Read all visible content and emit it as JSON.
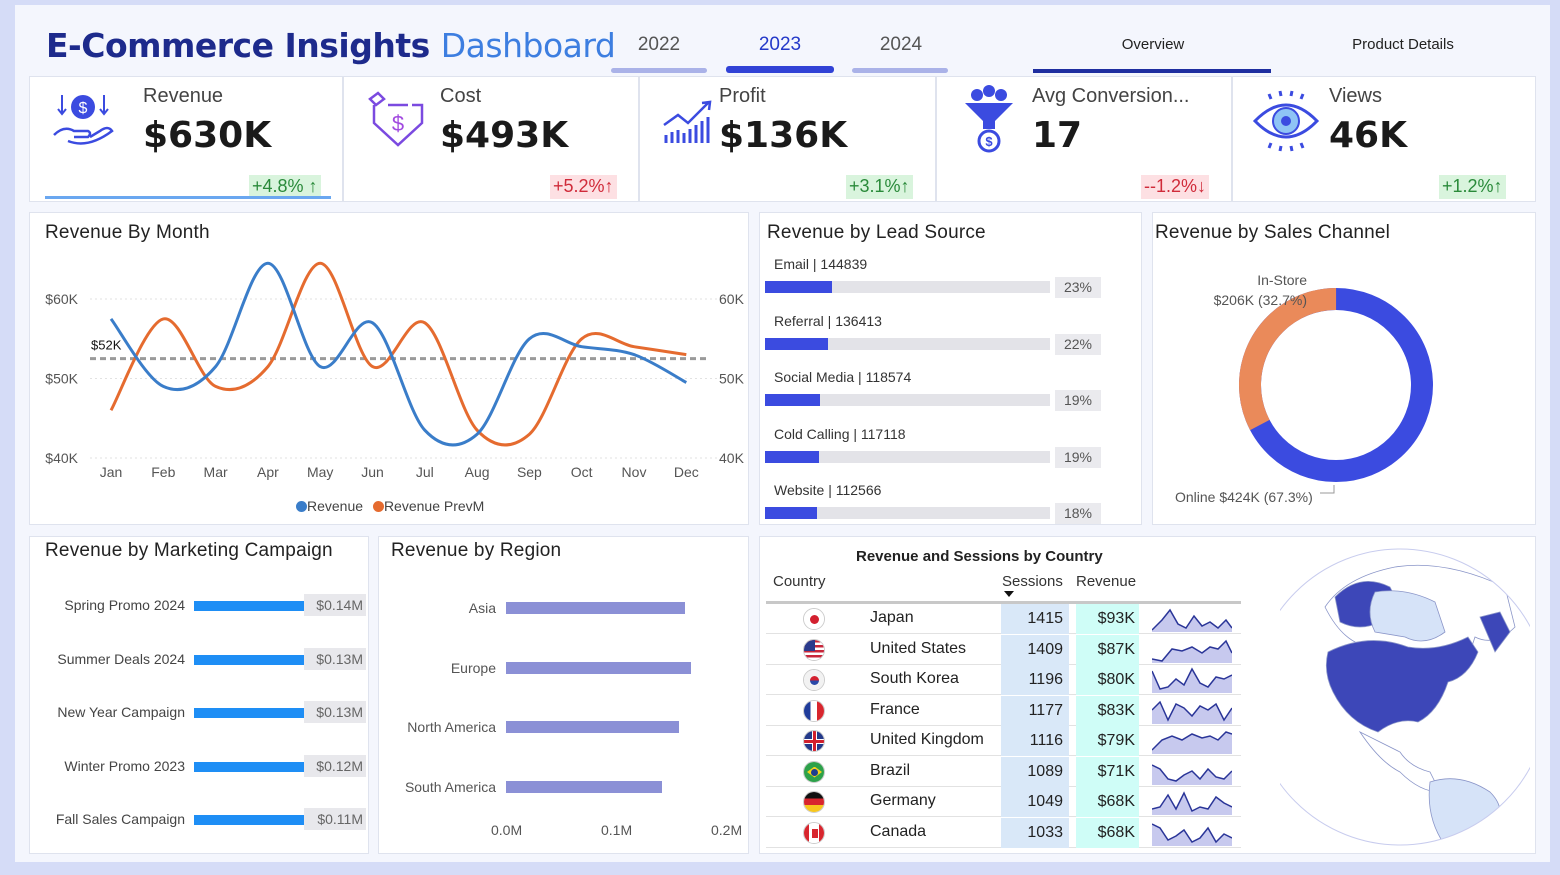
{
  "header": {
    "title_main": "E-Commerce Insights",
    "title_accent": "Dashboard",
    "years": [
      "2022",
      "2023",
      "2024"
    ],
    "selected_year": "2023",
    "tabs": [
      "Overview",
      "Product Details"
    ],
    "active_tab": "Overview"
  },
  "kpis": [
    {
      "label": "Revenue",
      "value": "$630K",
      "delta": "+4.8% ↑",
      "trend": "up",
      "icon": "revenue-hand-icon"
    },
    {
      "label": "Cost",
      "value": "$493K",
      "delta": "+5.2%↑",
      "trend": "down",
      "icon": "cost-shield-icon"
    },
    {
      "label": "Profit",
      "value": "$136K",
      "delta": "+3.1%↑",
      "trend": "up",
      "icon": "profit-chart-icon"
    },
    {
      "label": "Avg Conversion...",
      "value": "17",
      "delta": "--1.2%↓",
      "trend": "down",
      "icon": "funnel-icon"
    },
    {
      "label": "Views",
      "value": "46K",
      "delta": "+1.2%↑",
      "trend": "up",
      "icon": "eye-icon"
    }
  ],
  "revenue_by_month": {
    "title": "Revenue By Month",
    "avg_label": "$52K",
    "legend": [
      "Revenue",
      "Revenue PrevM"
    ]
  },
  "lead_source": {
    "title": "Revenue by Lead Source",
    "items": [
      {
        "label": "Email | 144839",
        "value": 144839,
        "pct": "23%"
      },
      {
        "label": "Referral | 136413",
        "value": 136413,
        "pct": "22%"
      },
      {
        "label": "Social Media | 118574",
        "value": 118574,
        "pct": "19%"
      },
      {
        "label": "Cold Calling | 117118",
        "value": 117118,
        "pct": "19%"
      },
      {
        "label": "Website | 112566",
        "value": 112566,
        "pct": "18%"
      }
    ]
  },
  "sales_channel": {
    "title": "Revenue by Sales Channel",
    "instore_name": "In-Store",
    "instore_value": "$206K (32.7%)",
    "online_label": "Online $424K (67.3%)"
  },
  "marketing": {
    "title": "Revenue by Marketing Campaign",
    "items": [
      {
        "label": "Spring Promo 2024",
        "value_text": "$0.14M",
        "value": 0.14
      },
      {
        "label": "Summer Deals 2024",
        "value_text": "$0.13M",
        "value": 0.13
      },
      {
        "label": "New Year Campaign",
        "value_text": "$0.13M",
        "value": 0.13
      },
      {
        "label": "Winter Promo 2023",
        "value_text": "$0.12M",
        "value": 0.12
      },
      {
        "label": "Fall Sales Campaign",
        "value_text": "$0.11M",
        "value": 0.11
      }
    ]
  },
  "region": {
    "title": "Revenue by Region",
    "items": [
      {
        "label": "Asia",
        "value": 0.163
      },
      {
        "label": "Europe",
        "value": 0.168
      },
      {
        "label": "North America",
        "value": 0.157
      },
      {
        "label": "South America",
        "value": 0.142
      }
    ],
    "ticks": [
      "0.0M",
      "0.1M",
      "0.2M"
    ]
  },
  "country_table": {
    "title": "Revenue and Sessions by Country",
    "headers": [
      "Country",
      "Sessions",
      "Revenue"
    ],
    "rows": [
      {
        "country": "Japan",
        "sessions": "1415",
        "revenue": "$93K"
      },
      {
        "country": "United States",
        "sessions": "1409",
        "revenue": "$87K"
      },
      {
        "country": "South Korea",
        "sessions": "1196",
        "revenue": "$80K"
      },
      {
        "country": "France",
        "sessions": "1177",
        "revenue": "$83K"
      },
      {
        "country": "United Kingdom",
        "sessions": "1116",
        "revenue": "$79K"
      },
      {
        "country": "Brazil",
        "sessions": "1089",
        "revenue": "$71K"
      },
      {
        "country": "Germany",
        "sessions": "1049",
        "revenue": "$68K"
      },
      {
        "country": "Canada",
        "sessions": "1033",
        "revenue": "$68K"
      }
    ]
  },
  "chart_data": [
    {
      "type": "line",
      "title": "Revenue By Month",
      "categories": [
        "Jan",
        "Feb",
        "Mar",
        "Apr",
        "May",
        "Jun",
        "Jul",
        "Aug",
        "Sep",
        "Oct",
        "Nov",
        "Dec"
      ],
      "series": [
        {
          "name": "Revenue",
          "values": [
            57.5,
            49,
            51.5,
            64.5,
            51.5,
            57,
            43.5,
            43,
            55,
            54,
            53,
            49.5
          ],
          "color": "#3a7dc9"
        },
        {
          "name": "Revenue PrevM",
          "values": [
            46,
            57.5,
            49,
            51.5,
            64.5,
            51.5,
            57,
            43.5,
            43,
            55,
            54,
            53
          ],
          "color": "#e56b2f"
        }
      ],
      "ylim": [
        40,
        60
      ],
      "yticks_left": [
        "$40K",
        "$50K",
        "$60K"
      ],
      "yticks_right": [
        "40K",
        "50K",
        "60K"
      ],
      "reference_line": 52.5,
      "legend": "bottom"
    },
    {
      "type": "bar",
      "title": "Revenue by Lead Source",
      "categories": [
        "Email",
        "Referral",
        "Social Media",
        "Cold Calling",
        "Website"
      ],
      "values": [
        144839,
        136413,
        118574,
        117118,
        112566
      ]
    },
    {
      "type": "pie",
      "title": "Revenue by Sales Channel",
      "categories": [
        "Online",
        "In-Store"
      ],
      "values": [
        424,
        206
      ],
      "colors": [
        "#3b4be0",
        "#ea8a5a"
      ]
    },
    {
      "type": "bar",
      "title": "Revenue by Marketing Campaign",
      "categories": [
        "Spring Promo 2024",
        "Summer Deals 2024",
        "New Year Campaign",
        "Winter Promo 2023",
        "Fall Sales Campaign"
      ],
      "values": [
        0.14,
        0.13,
        0.13,
        0.12,
        0.11
      ]
    },
    {
      "type": "bar",
      "title": "Revenue by Region",
      "categories": [
        "Asia",
        "Europe",
        "North America",
        "South America"
      ],
      "values": [
        0.163,
        0.168,
        0.157,
        0.142
      ],
      "xlim": [
        0,
        0.2
      ]
    }
  ]
}
